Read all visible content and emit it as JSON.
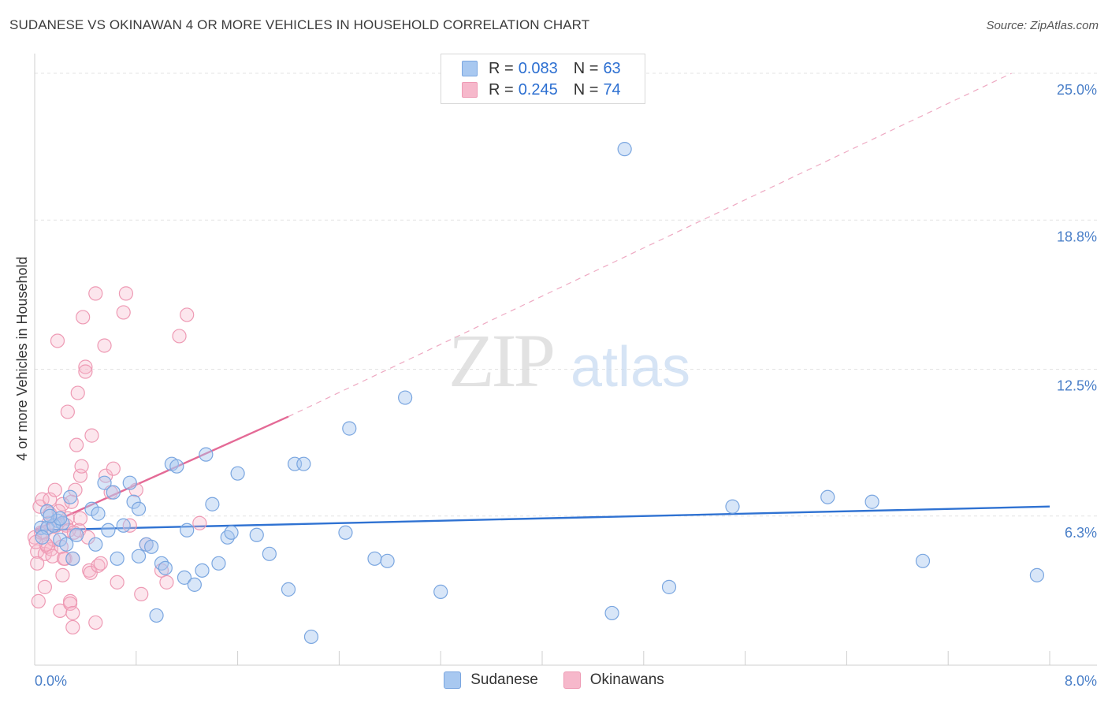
{
  "header": {
    "title": "SUDANESE VS OKINAWAN 4 OR MORE VEHICLES IN HOUSEHOLD CORRELATION CHART",
    "source": "Source: ZipAtlas.com"
  },
  "watermark": {
    "zip": "ZIP",
    "atlas": "atlas"
  },
  "legend": {
    "rows": [
      {
        "r_label": "R =",
        "r_value": "0.083",
        "n_label": "N =",
        "n_value": "63",
        "color": "#a8c8f0"
      },
      {
        "r_label": "R =",
        "r_value": "0.245",
        "n_label": "N =",
        "n_value": "74",
        "color": "#f6b8cb"
      }
    ]
  },
  "bottom_legend": [
    {
      "label": "Sudanese",
      "color": "#a8c8f0"
    },
    {
      "label": "Okinawans",
      "color": "#f6b8cb"
    }
  ],
  "colors": {
    "sudanese_fill": "rgba(168,200,240,0.45)",
    "sudanese_stroke": "#7aa6e0",
    "sudanese_line": "#2f72d2",
    "okinawan_fill": "rgba(246,184,203,0.35)",
    "okinawan_stroke": "#ee9ab4",
    "okinawan_line": "#e46a96",
    "grid": "#e3e3e3",
    "tick_label": "#4a7fc8"
  },
  "chart_data": {
    "type": "scatter",
    "title": "SUDANESE VS OKINAWAN 4 OR MORE VEHICLES IN HOUSEHOLD CORRELATION CHART",
    "xlabel": "",
    "ylabel": "4 or more Vehicles in Household",
    "xlim": [
      0,
      8.0
    ],
    "ylim": [
      0,
      25.5
    ],
    "x_tick_labels": [
      "0.0%",
      "8.0%"
    ],
    "y_ticks": [
      6.3,
      12.5,
      18.8,
      25.0
    ],
    "y_tick_labels": [
      "6.3%",
      "12.5%",
      "18.8%",
      "25.0%"
    ],
    "grid": true,
    "series": [
      {
        "name": "Sudanese",
        "r": 0.083,
        "n": 63,
        "trend": {
          "x0": 0.0,
          "y0": 5.7,
          "x1": 8.0,
          "y1": 6.7
        },
        "points": [
          [
            0.05,
            5.8
          ],
          [
            0.1,
            6.5
          ],
          [
            0.18,
            6.1
          ],
          [
            0.2,
            5.3
          ],
          [
            0.22,
            6.0
          ],
          [
            0.25,
            5.1
          ],
          [
            0.3,
            4.5
          ],
          [
            0.28,
            7.1
          ],
          [
            0.45,
            6.6
          ],
          [
            0.48,
            5.1
          ],
          [
            0.5,
            6.4
          ],
          [
            0.55,
            7.7
          ],
          [
            0.58,
            5.7
          ],
          [
            0.62,
            7.3
          ],
          [
            0.65,
            4.5
          ],
          [
            0.7,
            5.9
          ],
          [
            0.75,
            7.7
          ],
          [
            0.78,
            6.9
          ],
          [
            0.82,
            6.6
          ],
          [
            0.82,
            4.6
          ],
          [
            0.88,
            5.1
          ],
          [
            0.92,
            5.0
          ],
          [
            0.96,
            2.1
          ],
          [
            1.0,
            4.3
          ],
          [
            1.03,
            4.1
          ],
          [
            1.08,
            8.5
          ],
          [
            1.12,
            8.4
          ],
          [
            1.18,
            3.7
          ],
          [
            1.2,
            5.7
          ],
          [
            1.26,
            3.4
          ],
          [
            1.32,
            4.0
          ],
          [
            1.35,
            8.9
          ],
          [
            1.4,
            6.8
          ],
          [
            1.45,
            4.3
          ],
          [
            1.52,
            5.4
          ],
          [
            1.55,
            5.6
          ],
          [
            1.6,
            8.1
          ],
          [
            1.75,
            5.5
          ],
          [
            1.85,
            4.7
          ],
          [
            2.0,
            3.2
          ],
          [
            2.05,
            8.5
          ],
          [
            2.12,
            8.5
          ],
          [
            2.18,
            1.2
          ],
          [
            2.45,
            5.6
          ],
          [
            2.48,
            10.0
          ],
          [
            2.68,
            4.5
          ],
          [
            2.78,
            4.4
          ],
          [
            2.92,
            11.3
          ],
          [
            3.2,
            3.1
          ],
          [
            4.55,
            2.2
          ],
          [
            4.65,
            21.8
          ],
          [
            5.0,
            3.3
          ],
          [
            5.5,
            6.7
          ],
          [
            6.25,
            7.1
          ],
          [
            6.6,
            6.9
          ],
          [
            7.0,
            4.4
          ],
          [
            7.9,
            3.8
          ],
          [
            0.1,
            5.8
          ],
          [
            0.15,
            5.9
          ],
          [
            0.2,
            6.2
          ],
          [
            0.06,
            5.4
          ],
          [
            0.12,
            6.3
          ],
          [
            0.33,
            5.5
          ]
        ]
      },
      {
        "name": "Okinawans",
        "r": 0.245,
        "n": 74,
        "trend": {
          "x0": 0.0,
          "y0": 5.7,
          "x1": 2.0,
          "y1": 10.5
        },
        "trend_dashed": {
          "x0": 2.0,
          "y0": 10.5,
          "x1": 7.7,
          "y1": 25.0
        },
        "points": [
          [
            0.0,
            5.4
          ],
          [
            0.02,
            4.8
          ],
          [
            0.03,
            2.7
          ],
          [
            0.04,
            6.7
          ],
          [
            0.05,
            5.6
          ],
          [
            0.06,
            7.0
          ],
          [
            0.08,
            4.7
          ],
          [
            0.08,
            3.3
          ],
          [
            0.1,
            5.0
          ],
          [
            0.12,
            6.4
          ],
          [
            0.12,
            7.0
          ],
          [
            0.13,
            4.9
          ],
          [
            0.15,
            5.3
          ],
          [
            0.16,
            7.4
          ],
          [
            0.18,
            13.7
          ],
          [
            0.2,
            2.3
          ],
          [
            0.22,
            3.8
          ],
          [
            0.22,
            6.8
          ],
          [
            0.24,
            4.5
          ],
          [
            0.25,
            5.9
          ],
          [
            0.26,
            6.2
          ],
          [
            0.26,
            10.7
          ],
          [
            0.28,
            2.7
          ],
          [
            0.28,
            2.6
          ],
          [
            0.3,
            2.2
          ],
          [
            0.3,
            4.5
          ],
          [
            0.3,
            1.6
          ],
          [
            0.32,
            7.4
          ],
          [
            0.33,
            9.3
          ],
          [
            0.34,
            11.5
          ],
          [
            0.35,
            5.7
          ],
          [
            0.36,
            6.2
          ],
          [
            0.36,
            8.0
          ],
          [
            0.37,
            8.4
          ],
          [
            0.38,
            14.7
          ],
          [
            0.4,
            12.6
          ],
          [
            0.4,
            12.4
          ],
          [
            0.42,
            5.4
          ],
          [
            0.43,
            4.0
          ],
          [
            0.44,
            3.9
          ],
          [
            0.45,
            9.7
          ],
          [
            0.48,
            1.8
          ],
          [
            0.48,
            15.7
          ],
          [
            0.5,
            4.2
          ],
          [
            0.52,
            4.3
          ],
          [
            0.55,
            13.5
          ],
          [
            0.56,
            8.0
          ],
          [
            0.6,
            7.3
          ],
          [
            0.62,
            8.3
          ],
          [
            0.65,
            3.5
          ],
          [
            0.7,
            14.9
          ],
          [
            0.72,
            15.7
          ],
          [
            0.75,
            5.9
          ],
          [
            0.8,
            7.4
          ],
          [
            0.84,
            3.0
          ],
          [
            0.88,
            5.1
          ],
          [
            1.0,
            4.0
          ],
          [
            1.04,
            3.5
          ],
          [
            1.14,
            13.9
          ],
          [
            1.2,
            14.8
          ],
          [
            1.3,
            6.0
          ],
          [
            0.07,
            5.6
          ],
          [
            0.09,
            5.1
          ],
          [
            0.11,
            6.0
          ],
          [
            0.14,
            4.6
          ],
          [
            0.17,
            5.9
          ],
          [
            0.19,
            6.5
          ],
          [
            0.21,
            5.0
          ],
          [
            0.23,
            4.5
          ],
          [
            0.27,
            5.7
          ],
          [
            0.29,
            6.9
          ],
          [
            0.31,
            5.6
          ],
          [
            0.02,
            4.3
          ],
          [
            0.01,
            5.2
          ]
        ]
      }
    ]
  }
}
